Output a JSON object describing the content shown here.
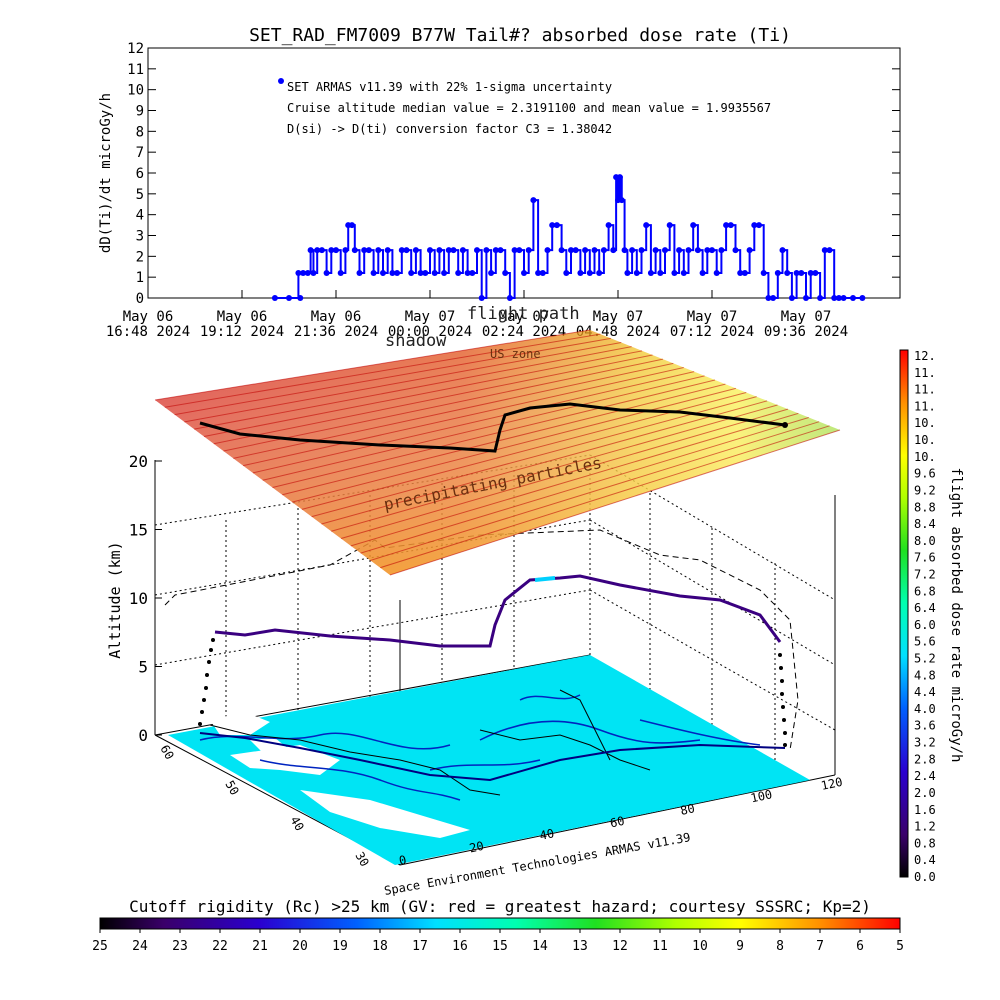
{
  "title": "SET_RAD_FM7009  B77W Tail#? absorbed dose rate (Ti)",
  "chart_data": [
    {
      "type": "scatter",
      "ylabel": "dD(Ti)/dt microGy/h",
      "ylim": [
        0,
        12
      ],
      "yticks": [
        "0",
        "1",
        "2",
        "3",
        "4",
        "5",
        "6",
        "7",
        "8",
        "9",
        "10",
        "11",
        "12"
      ],
      "xlim": [
        0,
        8
      ],
      "xticks": [
        {
          "l1": "May 06",
          "l2": "16:48 2024"
        },
        {
          "l1": "May 06",
          "l2": "19:12 2024"
        },
        {
          "l1": "May 06",
          "l2": "21:36 2024"
        },
        {
          "l1": "May 07",
          "l2": "00:00 2024"
        },
        {
          "l1": "May 07",
          "l2": "02:24 2024"
        },
        {
          "l1": "May 07",
          "l2": "04:48 2024"
        },
        {
          "l1": "May 07",
          "l2": "07:12 2024"
        },
        {
          "l1": "May 07",
          "l2": "09:36 2024"
        }
      ],
      "legend": [
        "SET ARMAS v11.39 with 22% 1-sigma uncertainty",
        "Cruise altitude median value = 2.3191100 and mean value = 1.9935567",
        "D(si) -> D(ti) conversion factor C3 = 1.38042"
      ],
      "series": [
        {
          "color": "#0000ff",
          "points": [
            [
              1.35,
              0
            ],
            [
              1.5,
              0
            ],
            [
              1.62,
              0
            ],
            [
              1.6,
              1.2
            ],
            [
              1.65,
              1.2
            ],
            [
              1.7,
              1.2
            ],
            [
              1.73,
              2.3
            ],
            [
              1.76,
              1.2
            ],
            [
              1.8,
              2.3
            ],
            [
              1.85,
              2.3
            ],
            [
              1.9,
              1.2
            ],
            [
              1.95,
              2.3
            ],
            [
              2.0,
              2.3
            ],
            [
              2.05,
              1.2
            ],
            [
              2.1,
              2.3
            ],
            [
              2.13,
              3.5
            ],
            [
              2.17,
              3.5
            ],
            [
              2.2,
              2.3
            ],
            [
              2.25,
              1.2
            ],
            [
              2.3,
              2.3
            ],
            [
              2.35,
              2.3
            ],
            [
              2.4,
              1.2
            ],
            [
              2.45,
              2.3
            ],
            [
              2.5,
              1.2
            ],
            [
              2.55,
              2.3
            ],
            [
              2.6,
              1.2
            ],
            [
              2.65,
              1.2
            ],
            [
              2.7,
              2.3
            ],
            [
              2.75,
              2.3
            ],
            [
              2.8,
              1.2
            ],
            [
              2.85,
              2.3
            ],
            [
              2.9,
              1.2
            ],
            [
              2.95,
              1.2
            ],
            [
              3.0,
              2.3
            ],
            [
              3.05,
              1.2
            ],
            [
              3.1,
              2.3
            ],
            [
              3.15,
              1.2
            ],
            [
              3.2,
              2.3
            ],
            [
              3.25,
              2.3
            ],
            [
              3.3,
              1.2
            ],
            [
              3.35,
              2.3
            ],
            [
              3.4,
              1.2
            ],
            [
              3.45,
              1.2
            ],
            [
              3.5,
              2.3
            ],
            [
              3.55,
              0
            ],
            [
              3.6,
              2.3
            ],
            [
              3.65,
              1.2
            ],
            [
              3.7,
              2.3
            ],
            [
              3.75,
              2.3
            ],
            [
              3.8,
              1.2
            ],
            [
              3.85,
              0
            ],
            [
              3.9,
              2.3
            ],
            [
              3.95,
              2.3
            ],
            [
              4.0,
              1.2
            ],
            [
              4.05,
              2.3
            ],
            [
              4.1,
              4.7
            ],
            [
              4.15,
              1.2
            ],
            [
              4.2,
              1.2
            ],
            [
              4.25,
              2.3
            ],
            [
              4.3,
              3.5
            ],
            [
              4.35,
              3.5
            ],
            [
              4.4,
              2.3
            ],
            [
              4.45,
              1.2
            ],
            [
              4.5,
              2.3
            ],
            [
              4.55,
              2.3
            ],
            [
              4.6,
              1.2
            ],
            [
              4.65,
              2.3
            ],
            [
              4.7,
              1.2
            ],
            [
              4.75,
              2.3
            ],
            [
              4.8,
              1.2
            ],
            [
              4.85,
              2.3
            ],
            [
              4.9,
              3.5
            ],
            [
              4.95,
              2.3
            ],
            [
              4.98,
              5.8
            ],
            [
              5.0,
              4.7
            ],
            [
              5.02,
              5.8
            ],
            [
              5.04,
              4.7
            ],
            [
              5.07,
              2.3
            ],
            [
              5.1,
              1.2
            ],
            [
              5.15,
              2.3
            ],
            [
              5.2,
              1.2
            ],
            [
              5.25,
              2.3
            ],
            [
              5.3,
              3.5
            ],
            [
              5.35,
              1.2
            ],
            [
              5.4,
              2.3
            ],
            [
              5.45,
              1.2
            ],
            [
              5.5,
              2.3
            ],
            [
              5.55,
              3.5
            ],
            [
              5.6,
              1.2
            ],
            [
              5.65,
              2.3
            ],
            [
              5.7,
              1.2
            ],
            [
              5.75,
              2.3
            ],
            [
              5.8,
              3.5
            ],
            [
              5.85,
              2.3
            ],
            [
              5.9,
              1.2
            ],
            [
              5.95,
              2.3
            ],
            [
              6.0,
              2.3
            ],
            [
              6.05,
              1.2
            ],
            [
              6.1,
              2.3
            ],
            [
              6.15,
              3.5
            ],
            [
              6.2,
              3.5
            ],
            [
              6.25,
              2.3
            ],
            [
              6.3,
              1.2
            ],
            [
              6.35,
              1.2
            ],
            [
              6.4,
              2.3
            ],
            [
              6.45,
              3.5
            ],
            [
              6.5,
              3.5
            ],
            [
              6.55,
              1.2
            ],
            [
              6.6,
              0
            ],
            [
              6.65,
              0
            ],
            [
              6.7,
              1.2
            ],
            [
              6.75,
              2.3
            ],
            [
              6.8,
              1.2
            ],
            [
              6.85,
              0
            ],
            [
              6.9,
              1.2
            ],
            [
              6.95,
              1.2
            ],
            [
              7.0,
              0
            ],
            [
              7.05,
              1.2
            ],
            [
              7.1,
              1.2
            ],
            [
              7.15,
              0
            ],
            [
              7.2,
              2.3
            ],
            [
              7.25,
              2.3
            ],
            [
              7.3,
              0
            ],
            [
              7.35,
              0
            ],
            [
              7.4,
              0
            ],
            [
              7.5,
              0
            ],
            [
              7.6,
              0
            ]
          ]
        }
      ]
    },
    {
      "type": "area",
      "zlabel": "Altitude (km)",
      "zticks": [
        "0",
        "5",
        "10",
        "15",
        "20"
      ],
      "xticks": [
        "0",
        "20",
        "40",
        "60",
        "80",
        "100",
        "120"
      ],
      "yticks": [
        "30",
        "40",
        "50",
        "60"
      ],
      "annotations": [
        "shadow",
        "flight path",
        "precipitating particles",
        "US zone"
      ],
      "credit": "Space Environment Technologies ARMAS v11.39"
    },
    {
      "type": "heatmap",
      "colorbar_label": "flight absorbed dose rate microGy/h",
      "colorbar_ticks": [
        "0.0",
        "0.4",
        "0.8",
        "1.2",
        "1.6",
        "2.0",
        "2.4",
        "2.8",
        "3.2",
        "3.6",
        "4.0",
        "4.4",
        "4.8",
        "5.2",
        "5.6",
        "6.0",
        "6.4",
        "6.8",
        "7.2",
        "7.6",
        "8.0",
        "8.4",
        "8.8",
        "9.2",
        "9.6",
        "10.",
        "10.",
        "10.",
        "11.",
        "11.",
        "11.",
        "12."
      ],
      "colorbar_range": [
        0,
        12
      ]
    },
    {
      "type": "heatmap",
      "colorbar_label": "Cutoff rigidity (Rc) >25 km (GV: red = greatest hazard; courtesy SSSRC; Kp=2)",
      "colorbar_ticks": [
        "25",
        "24",
        "23",
        "22",
        "21",
        "20",
        "19",
        "18",
        "17",
        "16",
        "15",
        "14",
        "13",
        "12",
        "11",
        "10",
        "9",
        "8",
        "7",
        "6",
        "5"
      ]
    }
  ]
}
